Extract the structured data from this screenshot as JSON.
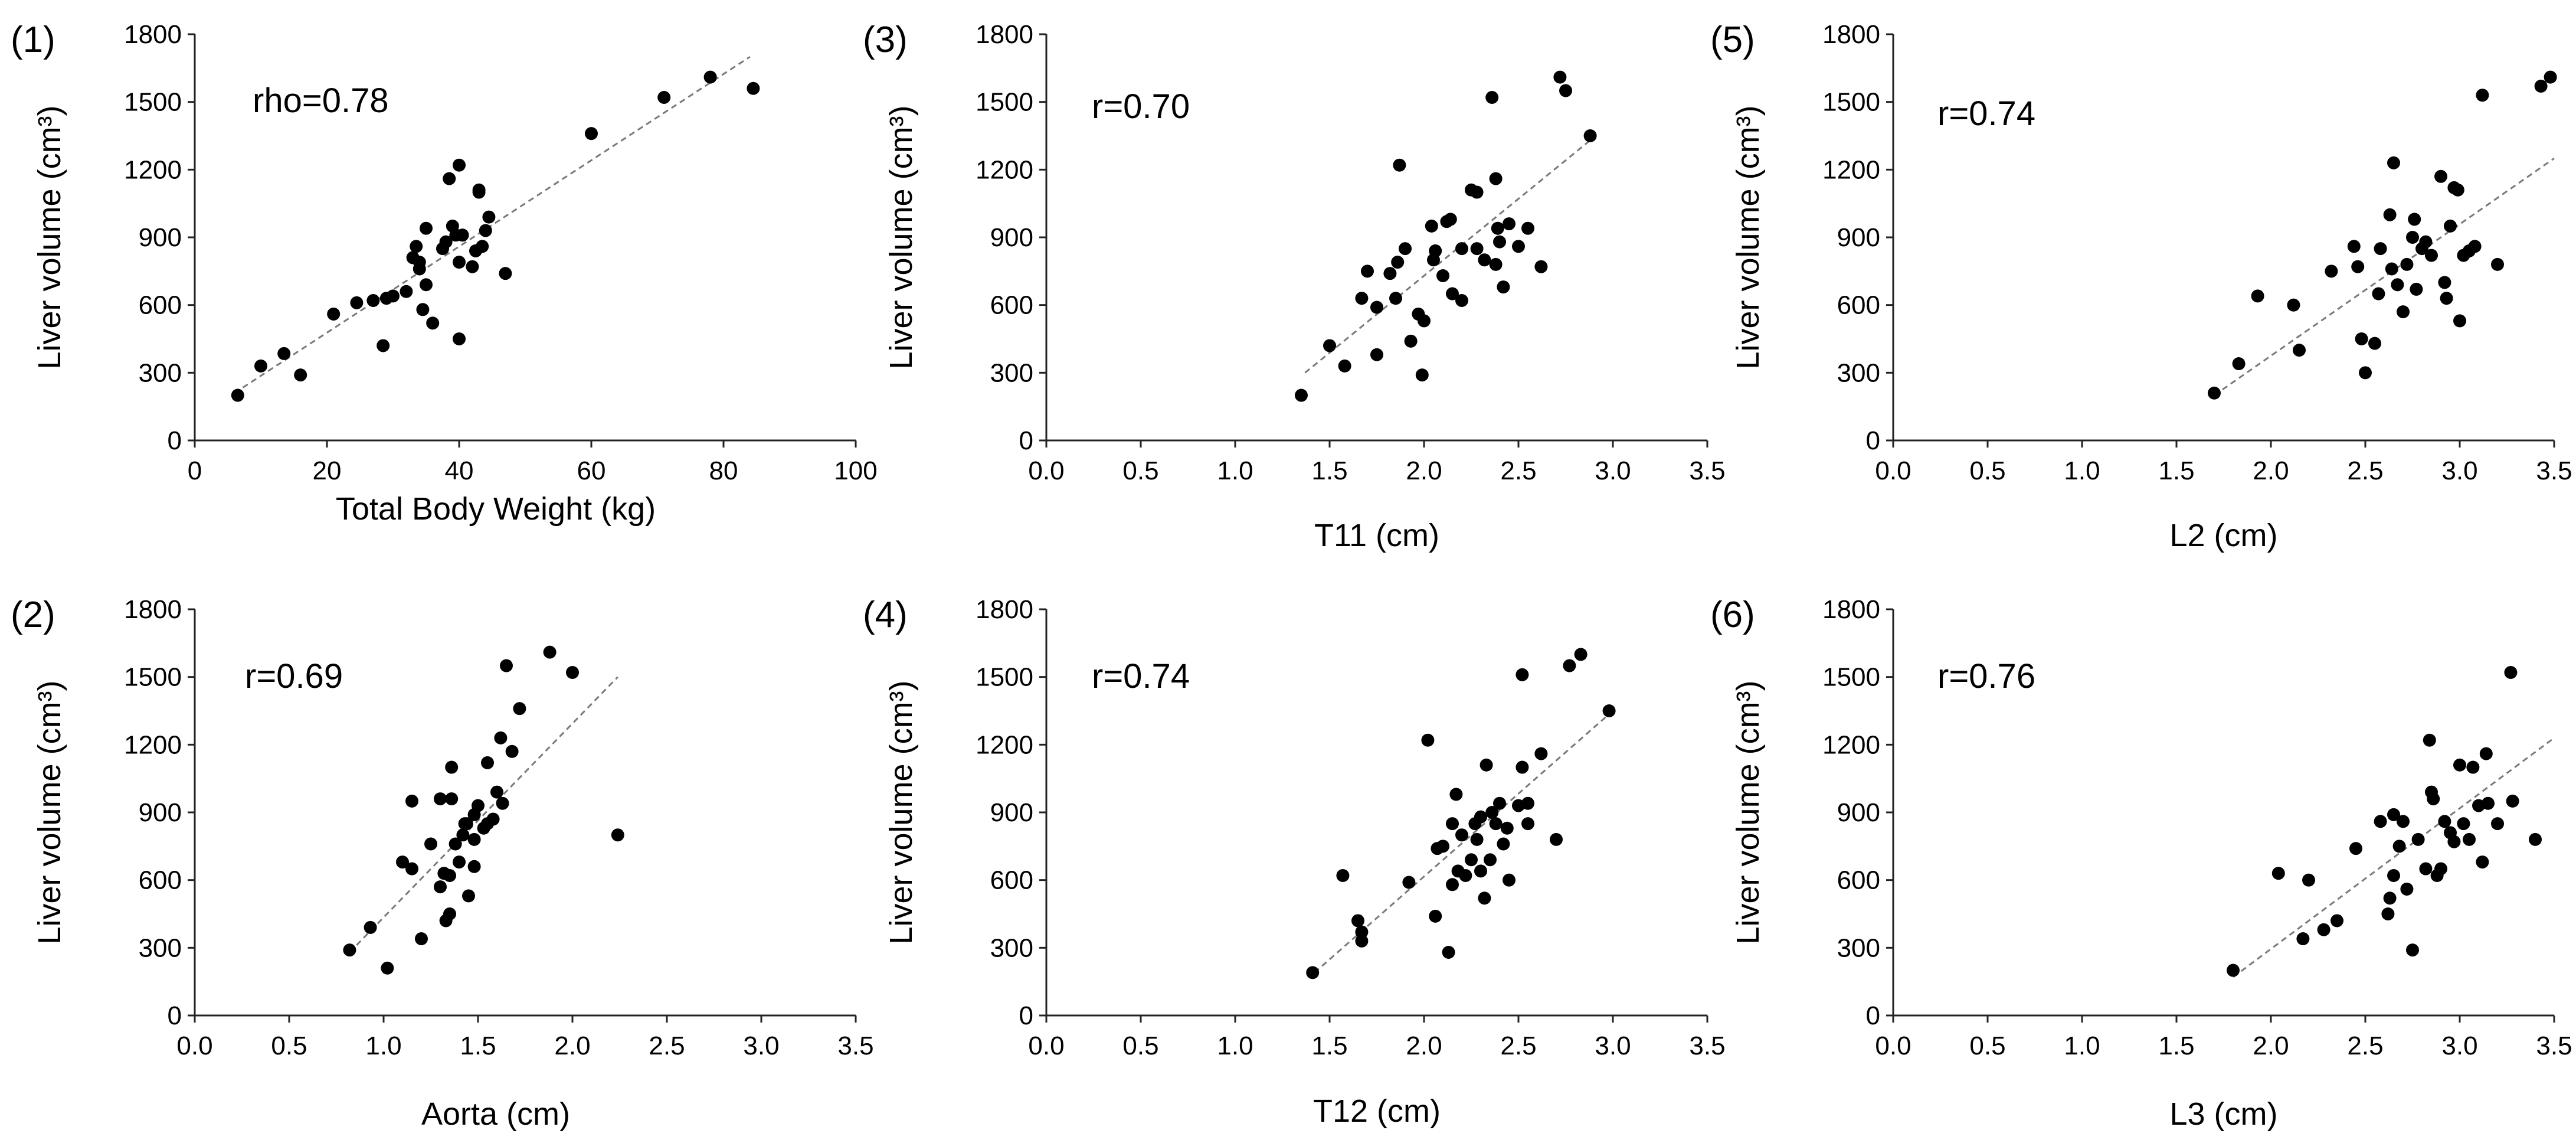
{
  "chart_data": [
    {
      "type": "scatter",
      "panel_label": "(1)",
      "annotation": "rho=0.78",
      "xlabel": "Total Body Weight (kg)",
      "ylabel": "Liver volume (cm³)",
      "xlim": [
        0,
        100
      ],
      "ylim": [
        0,
        1800
      ],
      "xticks": [
        0,
        20,
        40,
        60,
        80,
        100
      ],
      "xtick_labels": [
        "0",
        "20",
        "40",
        "60",
        "80",
        "100"
      ],
      "yticks": [
        0,
        300,
        600,
        900,
        1200,
        1500,
        1800
      ],
      "ytick_labels": [
        "0",
        "300",
        "600",
        "900",
        "1200",
        "1500",
        "1800"
      ],
      "fit_line": [
        [
          6,
          210
        ],
        [
          84,
          1700
        ]
      ],
      "points": [
        [
          6.5,
          200
        ],
        [
          10,
          330
        ],
        [
          13.5,
          385
        ],
        [
          16,
          290
        ],
        [
          21,
          560
        ],
        [
          24.5,
          610
        ],
        [
          27,
          620
        ],
        [
          28.5,
          420
        ],
        [
          29,
          630
        ],
        [
          30,
          640
        ],
        [
          32,
          660
        ],
        [
          33,
          810
        ],
        [
          33.5,
          860
        ],
        [
          34,
          760
        ],
        [
          34,
          790
        ],
        [
          34.5,
          580
        ],
        [
          35,
          690
        ],
        [
          35,
          940
        ],
        [
          36,
          520
        ],
        [
          37.5,
          850
        ],
        [
          38,
          880
        ],
        [
          38.5,
          1160
        ],
        [
          39,
          950
        ],
        [
          39.5,
          910
        ],
        [
          40,
          790
        ],
        [
          40,
          1220
        ],
        [
          40,
          450
        ],
        [
          40.5,
          910
        ],
        [
          42,
          770
        ],
        [
          42.5,
          840
        ],
        [
          43,
          1110
        ],
        [
          43,
          1100
        ],
        [
          43.5,
          860
        ],
        [
          44,
          930
        ],
        [
          44.5,
          990
        ],
        [
          47,
          740
        ],
        [
          60,
          1360
        ],
        [
          71,
          1520
        ],
        [
          78,
          1610
        ],
        [
          84.5,
          1560
        ]
      ]
    },
    {
      "type": "scatter",
      "panel_label": "(2)",
      "annotation": "r=0.69",
      "xlabel": "Aorta (cm)",
      "ylabel": "Liver volume (cm³)",
      "xlim": [
        0,
        3.5
      ],
      "ylim": [
        0,
        1800
      ],
      "xticks": [
        0,
        0.5,
        1.0,
        1.5,
        2.0,
        2.5,
        3.0,
        3.5
      ],
      "xtick_labels": [
        "0.0",
        "0.5",
        "1.0",
        "1.5",
        "2.0",
        "2.5",
        "3.0",
        "3.5"
      ],
      "yticks": [
        0,
        300,
        600,
        900,
        1200,
        1500,
        1800
      ],
      "ytick_labels": [
        "0",
        "300",
        "600",
        "900",
        "1200",
        "1500",
        "1800"
      ],
      "fit_line": [
        [
          0.82,
          280
        ],
        [
          2.24,
          1500
        ]
      ],
      "points": [
        [
          0.82,
          290
        ],
        [
          0.93,
          390
        ],
        [
          1.02,
          210
        ],
        [
          1.1,
          680
        ],
        [
          1.15,
          650
        ],
        [
          1.15,
          950
        ],
        [
          1.2,
          340
        ],
        [
          1.25,
          760
        ],
        [
          1.3,
          960
        ],
        [
          1.3,
          570
        ],
        [
          1.32,
          630
        ],
        [
          1.33,
          420
        ],
        [
          1.35,
          450
        ],
        [
          1.35,
          620
        ],
        [
          1.36,
          960
        ],
        [
          1.36,
          1100
        ],
        [
          1.38,
          760
        ],
        [
          1.4,
          680
        ],
        [
          1.42,
          800
        ],
        [
          1.43,
          850
        ],
        [
          1.44,
          850
        ],
        [
          1.45,
          530
        ],
        [
          1.48,
          660
        ],
        [
          1.48,
          780
        ],
        [
          1.48,
          890
        ],
        [
          1.5,
          930
        ],
        [
          1.53,
          830
        ],
        [
          1.55,
          1120
        ],
        [
          1.55,
          850
        ],
        [
          1.58,
          870
        ],
        [
          1.6,
          990
        ],
        [
          1.62,
          1230
        ],
        [
          1.63,
          940
        ],
        [
          1.65,
          1550
        ],
        [
          1.68,
          1170
        ],
        [
          1.72,
          1360
        ],
        [
          1.88,
          1610
        ],
        [
          2.0,
          1520
        ],
        [
          2.24,
          800
        ]
      ]
    },
    {
      "type": "scatter",
      "panel_label": "(3)",
      "annotation": "r=0.70",
      "xlabel": "T11 (cm)",
      "ylabel": "Liver volume (cm³)",
      "xlim": [
        0,
        3.5
      ],
      "ylim": [
        0,
        1800
      ],
      "xticks": [
        0,
        0.5,
        1.0,
        1.5,
        2.0,
        2.5,
        3.0,
        3.5
      ],
      "xtick_labels": [
        "0.0",
        "0.5",
        "1.0",
        "1.5",
        "2.0",
        "2.5",
        "3.0",
        "3.5"
      ],
      "yticks": [
        0,
        300,
        600,
        900,
        1200,
        1500,
        1800
      ],
      "ytick_labels": [
        "0",
        "300",
        "600",
        "900",
        "1200",
        "1500",
        "1800"
      ],
      "fit_line": [
        [
          1.37,
          300
        ],
        [
          2.88,
          1330
        ]
      ],
      "points": [
        [
          1.35,
          200
        ],
        [
          1.5,
          420
        ],
        [
          1.58,
          330
        ],
        [
          1.67,
          630
        ],
        [
          1.7,
          750
        ],
        [
          1.75,
          590
        ],
        [
          1.75,
          380
        ],
        [
          1.82,
          740
        ],
        [
          1.85,
          630
        ],
        [
          1.86,
          790
        ],
        [
          1.87,
          1220
        ],
        [
          1.9,
          850
        ],
        [
          1.93,
          440
        ],
        [
          1.97,
          560
        ],
        [
          1.99,
          290
        ],
        [
          2.0,
          530
        ],
        [
          2.04,
          950
        ],
        [
          2.05,
          800
        ],
        [
          2.06,
          840
        ],
        [
          2.1,
          730
        ],
        [
          2.12,
          970
        ],
        [
          2.14,
          980
        ],
        [
          2.15,
          650
        ],
        [
          2.2,
          850
        ],
        [
          2.2,
          620
        ],
        [
          2.25,
          1110
        ],
        [
          2.28,
          850
        ],
        [
          2.28,
          1100
        ],
        [
          2.32,
          800
        ],
        [
          2.36,
          1520
        ],
        [
          2.38,
          780
        ],
        [
          2.38,
          1160
        ],
        [
          2.39,
          940
        ],
        [
          2.4,
          880
        ],
        [
          2.42,
          680
        ],
        [
          2.45,
          960
        ],
        [
          2.5,
          860
        ],
        [
          2.55,
          940
        ],
        [
          2.62,
          770
        ],
        [
          2.72,
          1610
        ],
        [
          2.75,
          1550
        ],
        [
          2.88,
          1350
        ]
      ]
    },
    {
      "type": "scatter",
      "panel_label": "(4)",
      "annotation": "r=0.74",
      "xlabel": "T12 (cm)",
      "ylabel": "Liver volume (cm³)",
      "xlim": [
        0,
        3.5
      ],
      "ylim": [
        0,
        1800
      ],
      "xticks": [
        0,
        0.5,
        1.0,
        1.5,
        2.0,
        2.5,
        3.0,
        3.5
      ],
      "xtick_labels": [
        "0.0",
        "0.5",
        "1.0",
        "1.5",
        "2.0",
        "2.5",
        "3.0",
        "3.5"
      ],
      "yticks": [
        0,
        300,
        600,
        900,
        1200,
        1500,
        1800
      ],
      "ytick_labels": [
        "0",
        "300",
        "600",
        "900",
        "1200",
        "1500",
        "1800"
      ],
      "fit_line": [
        [
          1.42,
          190
        ],
        [
          3.0,
          1350
        ]
      ],
      "points": [
        [
          1.41,
          190
        ],
        [
          1.57,
          620
        ],
        [
          1.65,
          420
        ],
        [
          1.67,
          370
        ],
        [
          1.67,
          330
        ],
        [
          1.92,
          590
        ],
        [
          2.02,
          1220
        ],
        [
          2.06,
          440
        ],
        [
          2.07,
          740
        ],
        [
          2.1,
          750
        ],
        [
          2.13,
          280
        ],
        [
          2.15,
          850
        ],
        [
          2.15,
          580
        ],
        [
          2.17,
          980
        ],
        [
          2.18,
          640
        ],
        [
          2.2,
          800
        ],
        [
          2.22,
          620
        ],
        [
          2.25,
          690
        ],
        [
          2.27,
          850
        ],
        [
          2.28,
          780
        ],
        [
          2.3,
          880
        ],
        [
          2.3,
          640
        ],
        [
          2.32,
          520
        ],
        [
          2.33,
          1110
        ],
        [
          2.35,
          690
        ],
        [
          2.36,
          900
        ],
        [
          2.38,
          850
        ],
        [
          2.4,
          940
        ],
        [
          2.42,
          760
        ],
        [
          2.44,
          830
        ],
        [
          2.45,
          600
        ],
        [
          2.5,
          930
        ],
        [
          2.52,
          1100
        ],
        [
          2.52,
          1510
        ],
        [
          2.55,
          940
        ],
        [
          2.55,
          850
        ],
        [
          2.62,
          1160
        ],
        [
          2.7,
          780
        ],
        [
          2.77,
          1550
        ],
        [
          2.83,
          1600
        ],
        [
          2.98,
          1350
        ]
      ]
    },
    {
      "type": "scatter",
      "panel_label": "(5)",
      "annotation": "r=0.74",
      "xlabel": "L2 (cm)",
      "ylabel": "Liver volume (cm³)",
      "xlim": [
        0,
        3.5
      ],
      "ylim": [
        0,
        1800
      ],
      "xticks": [
        0,
        0.5,
        1.0,
        1.5,
        2.0,
        2.5,
        3.0,
        3.5
      ],
      "xtick_labels": [
        "0.0",
        "0.5",
        "1.0",
        "1.5",
        "2.0",
        "2.5",
        "3.0",
        "3.5"
      ],
      "yticks": [
        0,
        300,
        600,
        900,
        1200,
        1500,
        1800
      ],
      "ytick_labels": [
        "0",
        "300",
        "600",
        "900",
        "1200",
        "1500",
        "1800"
      ],
      "fit_line": [
        [
          1.7,
          200
        ],
        [
          3.5,
          1250
        ]
      ],
      "points": [
        [
          1.7,
          210
        ],
        [
          1.83,
          340
        ],
        [
          1.93,
          640
        ],
        [
          2.12,
          600
        ],
        [
          2.15,
          400
        ],
        [
          2.32,
          750
        ],
        [
          2.44,
          860
        ],
        [
          2.46,
          770
        ],
        [
          2.48,
          450
        ],
        [
          2.5,
          300
        ],
        [
          2.55,
          430
        ],
        [
          2.57,
          650
        ],
        [
          2.58,
          850
        ],
        [
          2.63,
          1000
        ],
        [
          2.64,
          760
        ],
        [
          2.65,
          1230
        ],
        [
          2.67,
          690
        ],
        [
          2.7,
          570
        ],
        [
          2.72,
          780
        ],
        [
          2.75,
          900
        ],
        [
          2.76,
          980
        ],
        [
          2.77,
          670
        ],
        [
          2.8,
          850
        ],
        [
          2.82,
          880
        ],
        [
          2.85,
          820
        ],
        [
          2.9,
          1170
        ],
        [
          2.92,
          700
        ],
        [
          2.93,
          630
        ],
        [
          2.95,
          950
        ],
        [
          2.97,
          1120
        ],
        [
          2.99,
          1110
        ],
        [
          3.0,
          530
        ],
        [
          3.02,
          820
        ],
        [
          3.05,
          840
        ],
        [
          3.08,
          860
        ],
        [
          3.12,
          1530
        ],
        [
          3.2,
          780
        ],
        [
          3.43,
          1570
        ],
        [
          3.48,
          1610
        ]
      ]
    },
    {
      "type": "scatter",
      "panel_label": "(6)",
      "annotation": "r=0.76",
      "xlabel": "L3 (cm)",
      "ylabel": "Liver volume (cm³)",
      "xlim": [
        0,
        3.5
      ],
      "ylim": [
        0,
        1800
      ],
      "xticks": [
        0,
        0.5,
        1.0,
        1.5,
        2.0,
        2.5,
        3.0,
        3.5
      ],
      "xtick_labels": [
        "0.0",
        "0.5",
        "1.0",
        "1.5",
        "2.0",
        "2.5",
        "3.0",
        "3.5"
      ],
      "yticks": [
        0,
        300,
        600,
        900,
        1200,
        1500,
        1800
      ],
      "ytick_labels": [
        "0",
        "300",
        "600",
        "900",
        "1200",
        "1500",
        "1800"
      ],
      "fit_line": [
        [
          1.8,
          170
        ],
        [
          3.5,
          1230
        ]
      ],
      "points": [
        [
          1.8,
          200
        ],
        [
          2.04,
          630
        ],
        [
          2.17,
          340
        ],
        [
          2.2,
          600
        ],
        [
          2.28,
          380
        ],
        [
          2.35,
          420
        ],
        [
          2.45,
          740
        ],
        [
          2.58,
          860
        ],
        [
          2.62,
          450
        ],
        [
          2.63,
          520
        ],
        [
          2.65,
          890
        ],
        [
          2.65,
          620
        ],
        [
          2.68,
          750
        ],
        [
          2.7,
          860
        ],
        [
          2.72,
          560
        ],
        [
          2.75,
          290
        ],
        [
          2.78,
          780
        ],
        [
          2.82,
          650
        ],
        [
          2.84,
          1220
        ],
        [
          2.85,
          990
        ],
        [
          2.86,
          960
        ],
        [
          2.88,
          620
        ],
        [
          2.9,
          650
        ],
        [
          2.92,
          860
        ],
        [
          2.95,
          810
        ],
        [
          2.97,
          770
        ],
        [
          3.0,
          1110
        ],
        [
          3.02,
          850
        ],
        [
          3.05,
          780
        ],
        [
          3.07,
          1100
        ],
        [
          3.1,
          930
        ],
        [
          3.12,
          680
        ],
        [
          3.14,
          1160
        ],
        [
          3.15,
          940
        ],
        [
          3.2,
          850
        ],
        [
          3.27,
          1520
        ],
        [
          3.28,
          950
        ],
        [
          3.4,
          780
        ]
      ]
    }
  ]
}
